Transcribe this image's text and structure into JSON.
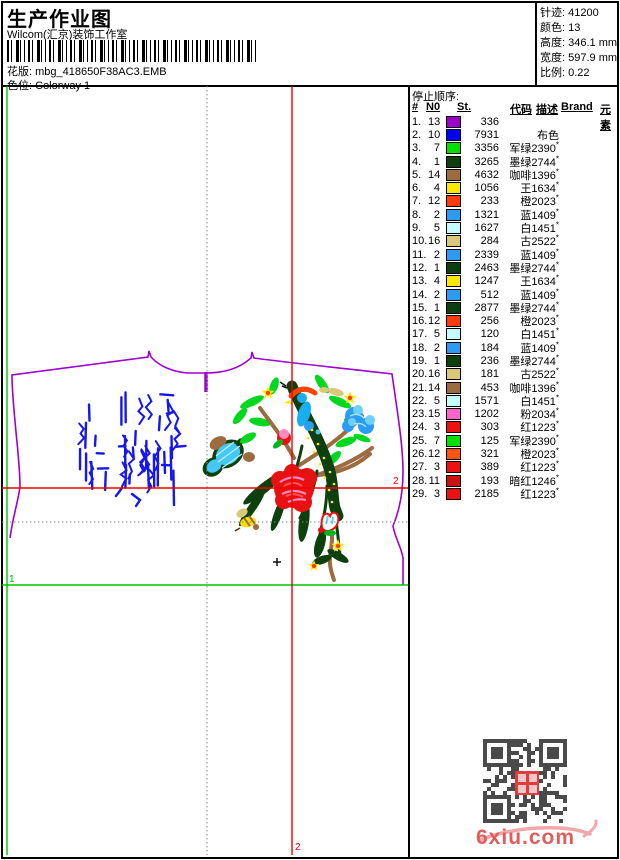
{
  "header": {
    "title": "生产作业图",
    "subtitle": "Wilcom(汇京)装饰工作室",
    "pattern_label": "花版:",
    "pattern_value": "mbg_418650F38AC3.EMB",
    "colorway_label": "色位:",
    "colorway_value": "Colorway 1",
    "stats": [
      {
        "label": "针迹:",
        "value": "41200"
      },
      {
        "label": "颜色:",
        "value": "13"
      },
      {
        "label": "高度:",
        "value": "346.1 mm"
      },
      {
        "label": "宽度:",
        "value": "597.9 mm"
      },
      {
        "label": "比例:",
        "value": "0.22"
      }
    ]
  },
  "stop_sequence": {
    "title": "停止顺序:",
    "headers": [
      "#",
      "N0",
      "St.",
      "代码",
      "描述",
      "Brand",
      "元素"
    ],
    "rows": [
      {
        "idx": "1.",
        "n": "13",
        "color": "#9a00c9",
        "st": "336",
        "code": "",
        "mark": ""
      },
      {
        "idx": "2.",
        "n": "10",
        "color": "#0000f0",
        "st": "7931",
        "code": "布色",
        "mark": ""
      },
      {
        "idx": "3.",
        "n": "7",
        "color": "#00e000",
        "st": "3356",
        "code": "军绿2390",
        "mark": "*"
      },
      {
        "idx": "4.",
        "n": "1",
        "color": "#0d400d",
        "st": "3265",
        "code": "墨绿2744",
        "mark": "*"
      },
      {
        "idx": "5.",
        "n": "14",
        "color": "#9c6b3f",
        "st": "4632",
        "code": "咖啡1396",
        "mark": "*"
      },
      {
        "idx": "6.",
        "n": "4",
        "color": "#ffe800",
        "st": "1056",
        "code": "王1634",
        "mark": "*"
      },
      {
        "idx": "7.",
        "n": "12",
        "color": "#ff3c0c",
        "st": "233",
        "code": "橙2023",
        "mark": "*"
      },
      {
        "idx": "8.",
        "n": "2",
        "color": "#2b9cf2",
        "st": "1321",
        "code": "蓝1409",
        "mark": "*"
      },
      {
        "idx": "9.",
        "n": "5",
        "color": "#c4fbff",
        "st": "1627",
        "code": "白1451",
        "mark": "*"
      },
      {
        "idx": "10.",
        "n": "16",
        "color": "#d9c878",
        "st": "284",
        "code": "古2522",
        "mark": "*"
      },
      {
        "idx": "11.",
        "n": "2",
        "color": "#2b9cf2",
        "st": "2339",
        "code": "蓝1409",
        "mark": "*"
      },
      {
        "idx": "12.",
        "n": "1",
        "color": "#0d400d",
        "st": "2463",
        "code": "墨绿2744",
        "mark": "*"
      },
      {
        "idx": "13.",
        "n": "4",
        "color": "#ffe800",
        "st": "1247",
        "code": "王1634",
        "mark": "*"
      },
      {
        "idx": "14.",
        "n": "2",
        "color": "#2b9cf2",
        "st": "512",
        "code": "蓝1409",
        "mark": "*"
      },
      {
        "idx": "15.",
        "n": "1",
        "color": "#0d400d",
        "st": "2877",
        "code": "墨绿2744",
        "mark": "*"
      },
      {
        "idx": "16.",
        "n": "12",
        "color": "#ff3c0c",
        "st": "256",
        "code": "橙2023",
        "mark": "*"
      },
      {
        "idx": "17.",
        "n": "5",
        "color": "#c4fbff",
        "st": "120",
        "code": "白1451",
        "mark": "*"
      },
      {
        "idx": "18.",
        "n": "2",
        "color": "#2b9cf2",
        "st": "184",
        "code": "蓝1409",
        "mark": "*"
      },
      {
        "idx": "19.",
        "n": "1",
        "color": "#0d400d",
        "st": "236",
        "code": "墨绿2744",
        "mark": "*"
      },
      {
        "idx": "20.",
        "n": "16",
        "color": "#d9c878",
        "st": "181",
        "code": "古2522",
        "mark": "*"
      },
      {
        "idx": "21.",
        "n": "14",
        "color": "#9c6b3f",
        "st": "453",
        "code": "咖啡1396",
        "mark": "*"
      },
      {
        "idx": "22.",
        "n": "5",
        "color": "#c4fbff",
        "st": "1571",
        "code": "白1451",
        "mark": "*"
      },
      {
        "idx": "23.",
        "n": "15",
        "color": "#ff66cc",
        "st": "1202",
        "code": "粉2034",
        "mark": "*"
      },
      {
        "idx": "24.",
        "n": "3",
        "color": "#ee1111",
        "st": "303",
        "code": "红1223",
        "mark": "*"
      },
      {
        "idx": "25.",
        "n": "7",
        "color": "#00e000",
        "st": "125",
        "code": "军绿2390",
        "mark": "*"
      },
      {
        "idx": "26.",
        "n": "12",
        "color": "#ff5511",
        "st": "321",
        "code": "橙2023",
        "mark": "*"
      },
      {
        "idx": "27.",
        "n": "3",
        "color": "#ee1111",
        "st": "389",
        "code": "红1223",
        "mark": "*"
      },
      {
        "idx": "28.",
        "n": "11",
        "color": "#cc1111",
        "st": "193",
        "code": "暗红1246",
        "mark": "*"
      },
      {
        "idx": "29.",
        "n": "3",
        "color": "#ee1111",
        "st": "2185",
        "code": "红1223",
        "mark": "*"
      }
    ]
  },
  "canvas": {
    "guide1_label": "1",
    "guide2_label": "2",
    "guide2_bottom_label": "2",
    "colors": {
      "guide_green": "#00c400",
      "guide_red": "#f00000",
      "garment_outline": "#a000d0",
      "scribble_blue": "#1616f0"
    }
  },
  "footer": {
    "watermark": "6xiu.com"
  }
}
